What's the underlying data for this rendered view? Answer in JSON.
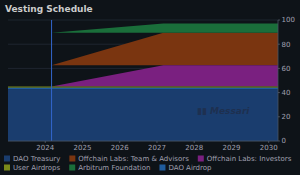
{
  "chart_data": {
    "type": "area",
    "title": "Vesting Schedule",
    "x": [
      2023.0,
      2024.17,
      2027.17,
      2030.25
    ],
    "series": [
      {
        "name": "DAO Treasury",
        "color": "#1a3d6e",
        "low": [
          0,
          0,
          0,
          0
        ],
        "values": [
          42.78,
          42.78,
          42.78,
          42.78
        ]
      },
      {
        "name": "Offchain Labs: Team & Advisors",
        "color": "#7a3510",
        "low": [
          62.57,
          62.57,
          62.57,
          62.57
        ],
        "values": [
          62.57,
          62.57,
          89.51,
          89.51
        ]
      },
      {
        "name": "Offchain Labs: Investors",
        "color": "#7a2080",
        "low": [
          45.04,
          45.04,
          45.04,
          45.04
        ],
        "values": [
          45.04,
          45.04,
          62.57,
          62.57
        ]
      },
      {
        "name": "User Airdrops",
        "color": "#7a8a1a",
        "low": [
          43.91,
          43.91,
          43.91,
          43.91
        ],
        "values": [
          45.04,
          45.04,
          45.04,
          45.04
        ]
      },
      {
        "name": "Arbitrum Foundation",
        "color": "#1a6e3a",
        "low": [
          89.51,
          89.51,
          89.51,
          89.51
        ],
        "values": [
          89.51,
          89.51,
          97.01,
          97.01
        ]
      },
      {
        "name": "DAO Airdrop",
        "color": "#1f5c9e",
        "low": [
          42.78,
          42.78,
          42.78,
          42.78
        ],
        "values": [
          43.91,
          43.91,
          43.91,
          43.91
        ]
      }
    ],
    "xlim": [
      2023.0,
      2030.25
    ],
    "xticks": [
      2024,
      2025,
      2026,
      2027,
      2028,
      2029,
      2030
    ],
    "ylim": [
      0,
      100
    ],
    "yticks": [
      0,
      20,
      40,
      60,
      80,
      100
    ],
    "grid": true,
    "vline": {
      "x": 2024.17,
      "color": "#3366cc"
    },
    "annotations": [
      {
        "text": "▮▮ Messari",
        "color": "#1e3050"
      }
    ]
  }
}
